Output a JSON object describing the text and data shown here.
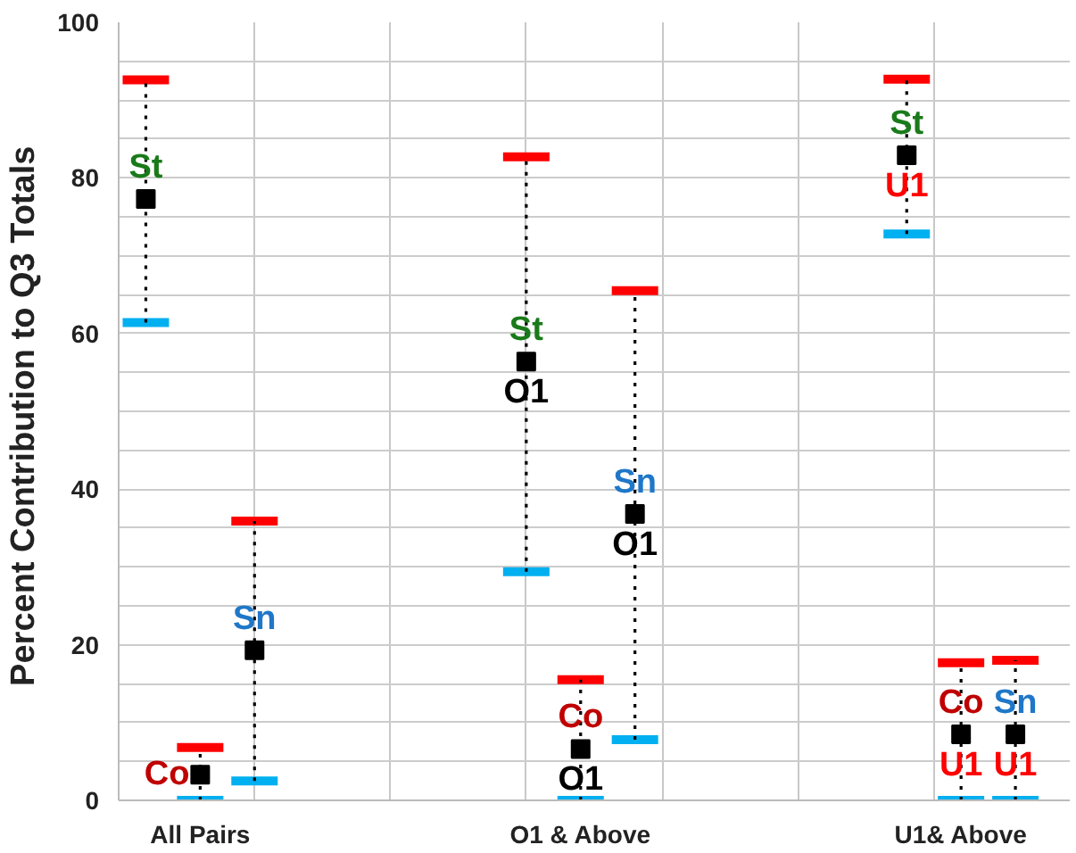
{
  "chart_data": {
    "type": "scatter",
    "ylabel": "Percent  Contribution to Q3 Totals",
    "categories": [
      "All Pairs",
      "O1 & Above",
      "U1& Above"
    ],
    "series": [
      {
        "name": "St",
        "color": "#000000",
        "values": [
          77.3,
          56.4,
          82.9
        ],
        "errors": [
          [
            61.4,
            92.6
          ],
          [
            29.4,
            82.7
          ],
          [
            72.8,
            92.7
          ]
        ],
        "value_labels": [
          null,
          "O1",
          "U1"
        ]
      },
      {
        "name": "Co",
        "color": "#000000",
        "values": [
          3.3,
          6.6,
          8.5
        ],
        "errors": [
          [
            0,
            6.8
          ],
          [
            0,
            15.5
          ],
          [
            0,
            17.7
          ]
        ],
        "value_labels": [
          null,
          "O1",
          "U1"
        ]
      },
      {
        "name": "Sn",
        "color": "#000000",
        "values": [
          19.3,
          36.8,
          8.5
        ],
        "errors": [
          [
            2.5,
            35.9
          ],
          [
            7.8,
            65.5
          ],
          [
            0,
            18.0
          ]
        ],
        "value_labels": [
          null,
          "O1",
          "U1"
        ]
      }
    ],
    "marker": "square",
    "grid": true,
    "ylim": [
      0,
      100
    ],
    "yticks": [
      0,
      {
        "value": 5,
        "label": null
      },
      {
        "value": 10,
        "label": null
      },
      {
        "value": 15,
        "label": null
      },
      20,
      {
        "value": 25,
        "label": null
      },
      {
        "value": 30,
        "label": null
      },
      {
        "value": 35,
        "label": null
      },
      40,
      {
        "value": 45,
        "label": null
      },
      {
        "value": 50,
        "label": null
      },
      {
        "value": 55,
        "label": null
      },
      60,
      {
        "value": 65,
        "label": null
      },
      {
        "value": 70,
        "label": null
      },
      {
        "value": 75,
        "label": null
      },
      80,
      {
        "value": 85,
        "label": null
      },
      {
        "value": 90,
        "label": null
      },
      {
        "value": 95,
        "label": null
      },
      100
    ]
  }
}
